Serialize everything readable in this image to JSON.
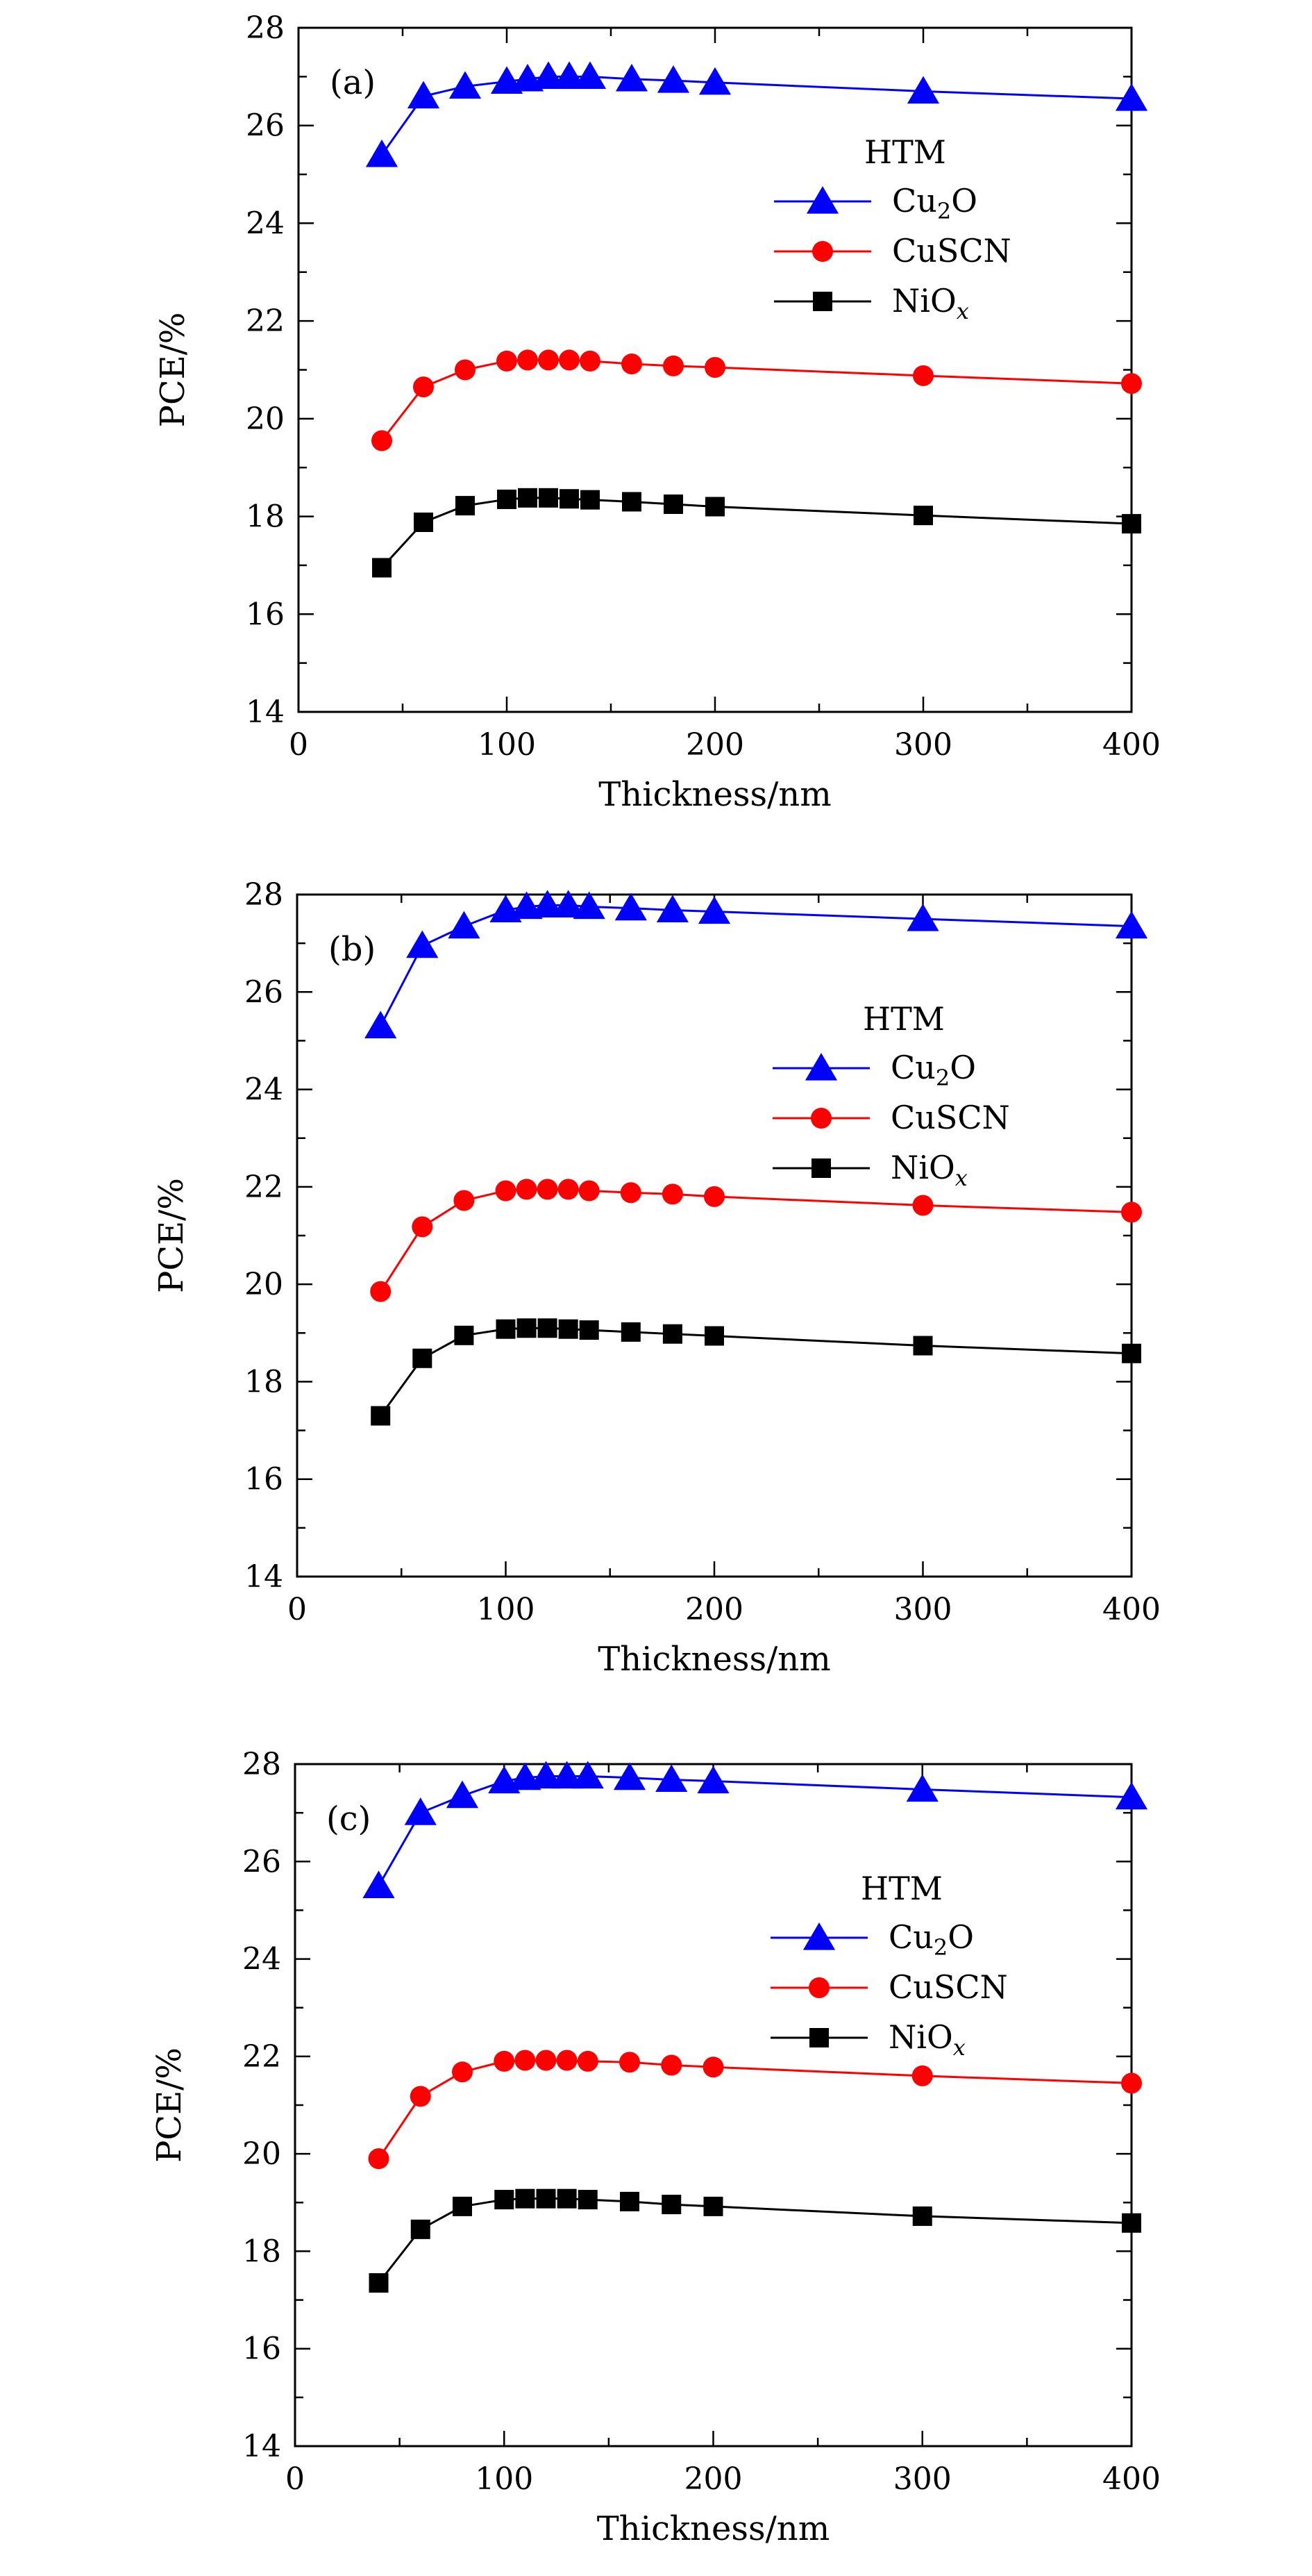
{
  "chart_data": [
    {
      "type": "line",
      "panel_label": "(a)",
      "xlabel": "Thickness/nm",
      "ylabel": "PCE/%",
      "xlim": [
        0,
        400
      ],
      "ylim": [
        14,
        28
      ],
      "xticks": [
        "0",
        "100",
        "200",
        "300",
        "400"
      ],
      "yticks": [
        "14",
        "16",
        "18",
        "20",
        "22",
        "24",
        "26",
        "28"
      ],
      "legend_title": "HTM",
      "legend_position": "right",
      "grid": false,
      "x": [
        40,
        60,
        80,
        100,
        110,
        120,
        130,
        140,
        160,
        180,
        200,
        300,
        400
      ],
      "series": [
        {
          "name": "Cu",
          "name_sub": "2",
          "name_tail": "O",
          "marker": "triangle",
          "color": "#0000ff",
          "values": [
            25.4,
            26.6,
            26.8,
            26.9,
            26.95,
            27.0,
            27.0,
            27.0,
            26.95,
            26.92,
            26.88,
            26.7,
            26.55
          ]
        },
        {
          "name": "CuSCN",
          "name_sub": "",
          "name_tail": "",
          "marker": "circle",
          "color": "#ff0000",
          "values": [
            19.55,
            20.65,
            21.0,
            21.18,
            21.2,
            21.2,
            21.2,
            21.18,
            21.12,
            21.08,
            21.05,
            20.88,
            20.72
          ]
        },
        {
          "name": "NiO",
          "name_sub": "x",
          "name_tail": "",
          "marker": "square",
          "color": "#000000",
          "values": [
            16.95,
            17.88,
            18.22,
            18.35,
            18.38,
            18.38,
            18.36,
            18.34,
            18.3,
            18.25,
            18.2,
            18.02,
            17.85
          ]
        }
      ]
    },
    {
      "type": "line",
      "panel_label": "(b)",
      "xlabel": "Thickness/nm",
      "ylabel": "PCE/%",
      "xlim": [
        0,
        400
      ],
      "ylim": [
        14,
        28
      ],
      "xticks": [
        "0",
        "100",
        "200",
        "300",
        "400"
      ],
      "yticks": [
        "14",
        "16",
        "18",
        "20",
        "22",
        "24",
        "26",
        "28"
      ],
      "legend_title": "HTM",
      "legend_position": "right",
      "grid": false,
      "x": [
        40,
        60,
        80,
        100,
        110,
        120,
        130,
        140,
        160,
        180,
        200,
        300,
        400
      ],
      "series": [
        {
          "name": "Cu",
          "name_sub": "2",
          "name_tail": "O",
          "marker": "triangle",
          "color": "#0000ff",
          "values": [
            25.3,
            26.95,
            27.35,
            27.68,
            27.75,
            27.78,
            27.78,
            27.75,
            27.72,
            27.68,
            27.65,
            27.5,
            27.35
          ]
        },
        {
          "name": "CuSCN",
          "name_sub": "",
          "name_tail": "",
          "marker": "circle",
          "color": "#ff0000",
          "values": [
            19.85,
            21.18,
            21.72,
            21.92,
            21.95,
            21.95,
            21.95,
            21.92,
            21.88,
            21.85,
            21.8,
            21.62,
            21.48
          ]
        },
        {
          "name": "NiO",
          "name_sub": "x",
          "name_tail": "",
          "marker": "square",
          "color": "#000000",
          "values": [
            17.3,
            18.48,
            18.95,
            19.08,
            19.1,
            19.1,
            19.08,
            19.06,
            19.02,
            18.98,
            18.94,
            18.74,
            18.58
          ]
        }
      ]
    },
    {
      "type": "line",
      "panel_label": "(c)",
      "xlabel": "Thickness/nm",
      "ylabel": "PCE/%",
      "xlim": [
        0,
        400
      ],
      "ylim": [
        14,
        28
      ],
      "xticks": [
        "0",
        "100",
        "200",
        "300",
        "400"
      ],
      "yticks": [
        "14",
        "16",
        "18",
        "20",
        "22",
        "24",
        "26",
        "28"
      ],
      "legend_title": "HTM",
      "legend_position": "right",
      "grid": false,
      "x": [
        40,
        60,
        80,
        100,
        110,
        120,
        130,
        140,
        160,
        180,
        200,
        300,
        400
      ],
      "series": [
        {
          "name": "Cu",
          "name_sub": "2",
          "name_tail": "O",
          "marker": "triangle",
          "color": "#0000ff",
          "values": [
            25.5,
            27.0,
            27.35,
            27.65,
            27.72,
            27.75,
            27.75,
            27.75,
            27.72,
            27.68,
            27.65,
            27.48,
            27.32
          ]
        },
        {
          "name": "CuSCN",
          "name_sub": "",
          "name_tail": "",
          "marker": "circle",
          "color": "#ff0000",
          "values": [
            19.9,
            21.18,
            21.68,
            21.9,
            21.92,
            21.92,
            21.92,
            21.9,
            21.88,
            21.82,
            21.78,
            21.6,
            21.45
          ]
        },
        {
          "name": "NiO",
          "name_sub": "x",
          "name_tail": "",
          "marker": "square",
          "color": "#000000",
          "values": [
            17.35,
            18.45,
            18.92,
            19.06,
            19.08,
            19.08,
            19.08,
            19.06,
            19.02,
            18.96,
            18.92,
            18.72,
            18.58
          ]
        }
      ]
    }
  ]
}
